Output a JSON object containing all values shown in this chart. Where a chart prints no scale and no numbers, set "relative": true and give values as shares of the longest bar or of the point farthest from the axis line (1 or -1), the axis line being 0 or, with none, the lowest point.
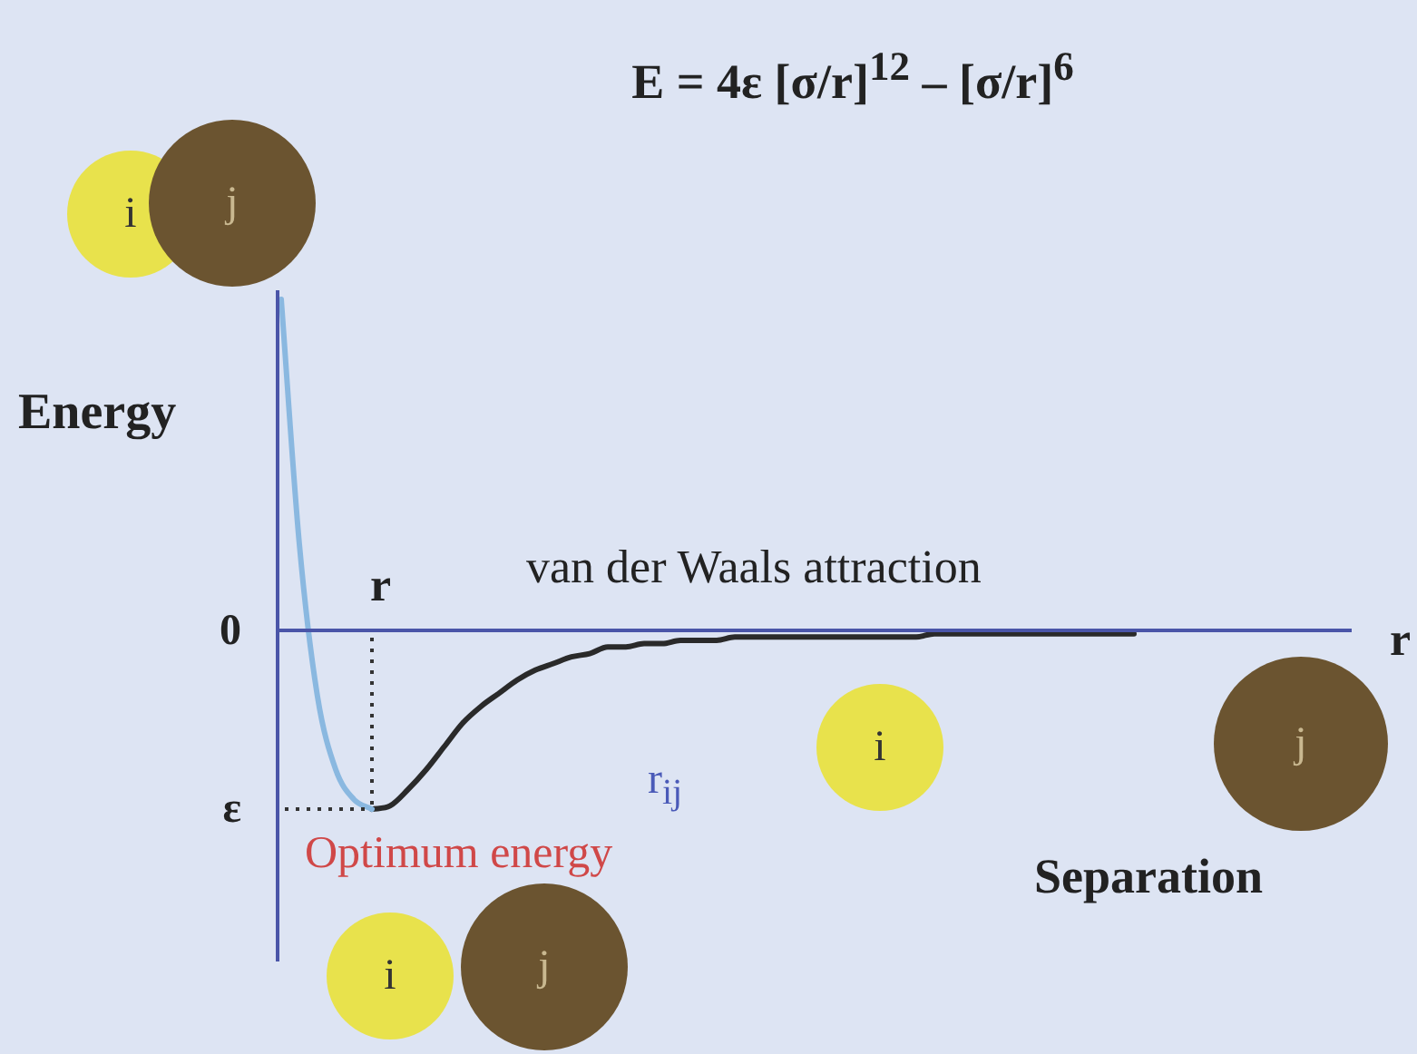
{
  "chart_data": {
    "type": "line",
    "title": "E = 4ε [σ/r]$^{12}$ – [σ/r]$^{6}$",
    "ylabel": "Energy",
    "xlabel": "Separation",
    "relative": true,
    "legend": false,
    "ref_lines": [
      {
        "axis": "y",
        "value": 0,
        "color": "#4a55a8"
      }
    ],
    "marker": "none",
    "line_style": "solid",
    "categories": [
      null,
      null,
      null,
      null,
      null,
      null,
      null,
      null,
      null,
      null,
      null,
      null,
      null,
      null,
      null,
      null,
      null,
      null,
      null,
      null,
      null,
      null,
      null,
      null,
      null,
      null,
      null,
      null,
      null,
      null,
      null,
      null,
      null,
      null,
      null,
      null,
      null,
      null,
      null,
      null,
      null,
      null,
      null,
      null,
      null,
      null,
      null,
      null
    ],
    "series": [
      {
        "color": "#8ab8e0",
        "values": [
          1.0,
          0.26,
          -0.2,
          -0.42,
          -0.51,
          -0.54,
          null,
          null,
          null,
          null,
          null,
          null,
          null,
          null,
          null,
          null,
          null,
          null,
          null,
          null,
          null,
          null,
          null,
          null,
          null,
          null,
          null,
          null,
          null,
          null,
          null,
          null,
          null,
          null,
          null,
          null,
          null,
          null,
          null,
          null,
          null,
          null,
          null,
          null,
          null,
          null,
          null,
          null
        ]
      },
      {
        "color": "#2a2a2a",
        "values": [
          null,
          null,
          null,
          null,
          null,
          -0.54,
          -0.53,
          -0.48,
          -0.42,
          -0.35,
          -0.28,
          -0.23,
          -0.19,
          -0.15,
          -0.12,
          -0.1,
          -0.08,
          -0.07,
          -0.05,
          -0.05,
          -0.04,
          -0.04,
          -0.03,
          -0.03,
          -0.03,
          -0.02,
          -0.02,
          -0.02,
          -0.02,
          -0.02,
          -0.02,
          -0.02,
          -0.02,
          -0.02,
          -0.02,
          -0.02,
          -0.01,
          -0.01,
          -0.01,
          -0.01,
          -0.01,
          -0.01,
          -0.01,
          -0.01,
          -0.01,
          -0.01,
          -0.01,
          -0.01
        ]
      }
    ],
    "annotations": [
      "0",
      "ε",
      "r",
      "van der Waals attraction",
      "r$_{ij}$",
      "Optimum energy",
      "r",
      "i",
      "j",
      "i",
      "j",
      "i",
      "j"
    ]
  }
}
